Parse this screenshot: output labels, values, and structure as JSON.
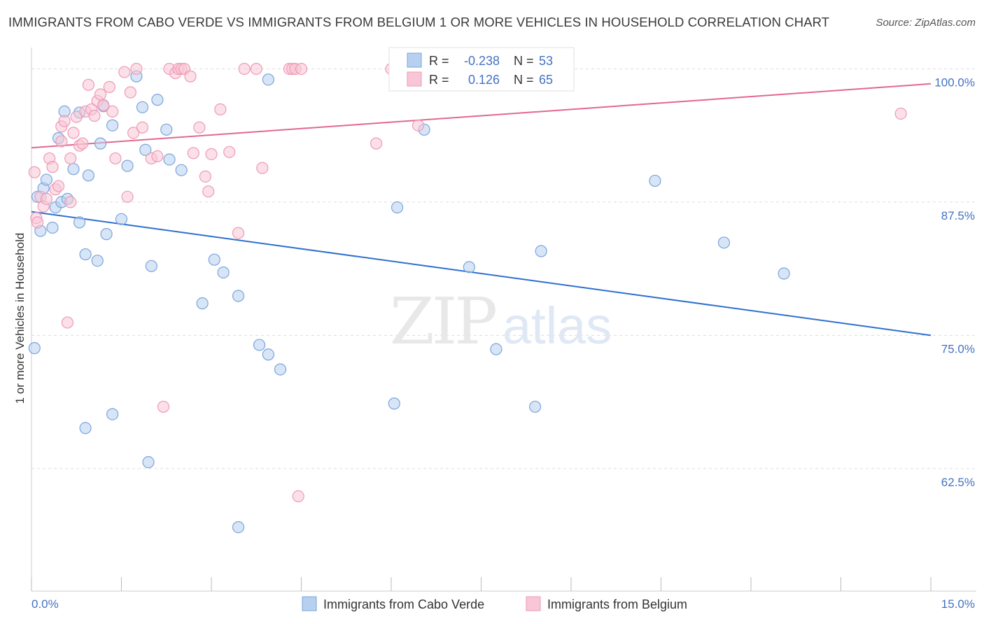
{
  "title": "IMMIGRANTS FROM CABO VERDE VS IMMIGRANTS FROM BELGIUM 1 OR MORE VEHICLES IN HOUSEHOLD CORRELATION CHART",
  "source": "Source: ZipAtlas.com",
  "watermark": {
    "zip": "ZIP",
    "atlas": "atlas"
  },
  "colors": {
    "blue_fill": "#b8d0f0",
    "blue_stroke": "#7aa5dc",
    "blue_line": "#2f6fcf",
    "pink_fill": "#f8c6d6",
    "pink_stroke": "#ee9ab6",
    "pink_line": "#e3688f",
    "tick_label": "#4472c4",
    "grid": "#dddddd"
  },
  "legend_box": {
    "rows": [
      {
        "r_label": "R =",
        "r_value": "-0.238",
        "n_label": "N =",
        "n_value": "53"
      },
      {
        "r_label": "R =",
        "r_value": "0.126",
        "n_label": "N =",
        "n_value": "65"
      }
    ]
  },
  "chart_data": {
    "type": "scatter",
    "title": "IMMIGRANTS FROM CABO VERDE VS IMMIGRANTS FROM BELGIUM 1 OR MORE VEHICLES IN HOUSEHOLD CORRELATION CHART",
    "xlabel": "",
    "ylabel": "1 or more Vehicles in Household",
    "xlim": [
      0,
      15
    ],
    "ylim": [
      51,
      102
    ],
    "x_tick_labels": [
      "0.0%",
      "15.0%"
    ],
    "x_tick_label_values": [
      0,
      15
    ],
    "x_minor_ticks": [
      0,
      1.5,
      3,
      4.5,
      6,
      7.5,
      9,
      10.5,
      12,
      13.5,
      15
    ],
    "y_ticks": [
      62.5,
      75.0,
      87.5,
      100.0
    ],
    "y_tick_labels": [
      "62.5%",
      "75.0%",
      "87.5%",
      "100.0%"
    ],
    "grid": true,
    "legend_position": "bottom",
    "series": [
      {
        "name": "Immigrants from Cabo Verde",
        "color": "#7aa5dc",
        "points": [
          [
            0.05,
            73.8
          ],
          [
            0.1,
            88.0
          ],
          [
            0.15,
            84.8
          ],
          [
            0.2,
            88.8
          ],
          [
            0.25,
            89.6
          ],
          [
            0.35,
            85.1
          ],
          [
            0.4,
            87.0
          ],
          [
            0.45,
            93.5
          ],
          [
            0.5,
            87.5
          ],
          [
            0.55,
            96.0
          ],
          [
            0.6,
            87.8
          ],
          [
            0.7,
            90.6
          ],
          [
            0.8,
            95.9
          ],
          [
            0.8,
            85.6
          ],
          [
            0.9,
            66.3
          ],
          [
            0.9,
            82.6
          ],
          [
            0.95,
            90.0
          ],
          [
            1.1,
            82.0
          ],
          [
            1.15,
            93.0
          ],
          [
            1.2,
            96.5
          ],
          [
            1.25,
            84.5
          ],
          [
            1.35,
            67.6
          ],
          [
            1.35,
            94.7
          ],
          [
            1.5,
            85.9
          ],
          [
            1.6,
            90.9
          ],
          [
            1.75,
            99.3
          ],
          [
            1.85,
            96.4
          ],
          [
            1.9,
            92.4
          ],
          [
            1.95,
            63.1
          ],
          [
            2.0,
            81.5
          ],
          [
            2.1,
            97.1
          ],
          [
            2.25,
            94.3
          ],
          [
            2.3,
            91.5
          ],
          [
            2.5,
            90.5
          ],
          [
            2.85,
            78.0
          ],
          [
            3.05,
            82.1
          ],
          [
            3.2,
            80.9
          ],
          [
            3.45,
            57.0
          ],
          [
            3.45,
            78.7
          ],
          [
            3.8,
            74.1
          ],
          [
            3.95,
            73.2
          ],
          [
            3.95,
            99.0
          ],
          [
            4.15,
            71.8
          ],
          [
            6.05,
            68.6
          ],
          [
            6.1,
            87.0
          ],
          [
            6.55,
            94.3
          ],
          [
            7.3,
            81.4
          ],
          [
            7.75,
            73.7
          ],
          [
            8.4,
            68.3
          ],
          [
            8.5,
            82.9
          ],
          [
            10.4,
            89.5
          ],
          [
            11.55,
            83.7
          ],
          [
            12.55,
            80.8
          ]
        ]
      },
      {
        "name": "Immigrants from Belgium",
        "color": "#ee9ab6",
        "points": [
          [
            0.05,
            90.3
          ],
          [
            0.08,
            86.0
          ],
          [
            0.1,
            85.6
          ],
          [
            0.15,
            88.0
          ],
          [
            0.2,
            87.1
          ],
          [
            0.25,
            87.8
          ],
          [
            0.3,
            91.6
          ],
          [
            0.35,
            90.8
          ],
          [
            0.4,
            88.7
          ],
          [
            0.45,
            89.0
          ],
          [
            0.5,
            93.2
          ],
          [
            0.5,
            94.6
          ],
          [
            0.55,
            95.1
          ],
          [
            0.6,
            76.2
          ],
          [
            0.65,
            87.5
          ],
          [
            0.65,
            91.6
          ],
          [
            0.7,
            94.0
          ],
          [
            0.75,
            95.5
          ],
          [
            0.8,
            92.8
          ],
          [
            0.85,
            93.0
          ],
          [
            0.9,
            96.0
          ],
          [
            0.95,
            98.5
          ],
          [
            1.0,
            96.2
          ],
          [
            1.05,
            95.6
          ],
          [
            1.1,
            97.0
          ],
          [
            1.15,
            97.6
          ],
          [
            1.2,
            96.6
          ],
          [
            1.3,
            98.3
          ],
          [
            1.35,
            96.0
          ],
          [
            1.4,
            91.6
          ],
          [
            1.55,
            99.7
          ],
          [
            1.6,
            88.0
          ],
          [
            1.65,
            97.8
          ],
          [
            1.7,
            94.0
          ],
          [
            1.75,
            100.0
          ],
          [
            1.85,
            94.5
          ],
          [
            2.0,
            91.6
          ],
          [
            2.1,
            91.8
          ],
          [
            2.2,
            68.3
          ],
          [
            2.3,
            100.0
          ],
          [
            2.4,
            99.6
          ],
          [
            2.45,
            100.0
          ],
          [
            2.5,
            100.0
          ],
          [
            2.55,
            100.0
          ],
          [
            2.65,
            99.3
          ],
          [
            2.7,
            92.1
          ],
          [
            2.8,
            94.5
          ],
          [
            2.9,
            89.9
          ],
          [
            2.95,
            88.5
          ],
          [
            3.0,
            92.0
          ],
          [
            3.15,
            96.2
          ],
          [
            3.3,
            92.2
          ],
          [
            3.45,
            84.6
          ],
          [
            3.55,
            100.0
          ],
          [
            3.75,
            100.0
          ],
          [
            3.85,
            90.7
          ],
          [
            4.3,
            100.0
          ],
          [
            4.35,
            100.0
          ],
          [
            4.4,
            100.0
          ],
          [
            4.45,
            59.9
          ],
          [
            4.5,
            100.0
          ],
          [
            5.75,
            93.0
          ],
          [
            6.0,
            100.0
          ],
          [
            6.45,
            94.7
          ],
          [
            14.5,
            95.8
          ]
        ]
      }
    ],
    "trendlines": [
      {
        "series": "Immigrants from Cabo Verde",
        "x": [
          0,
          15
        ],
        "y": [
          86.6,
          75.0
        ]
      },
      {
        "series": "Immigrants from Belgium",
        "x": [
          0,
          15
        ],
        "y": [
          92.6,
          98.6
        ]
      }
    ]
  }
}
